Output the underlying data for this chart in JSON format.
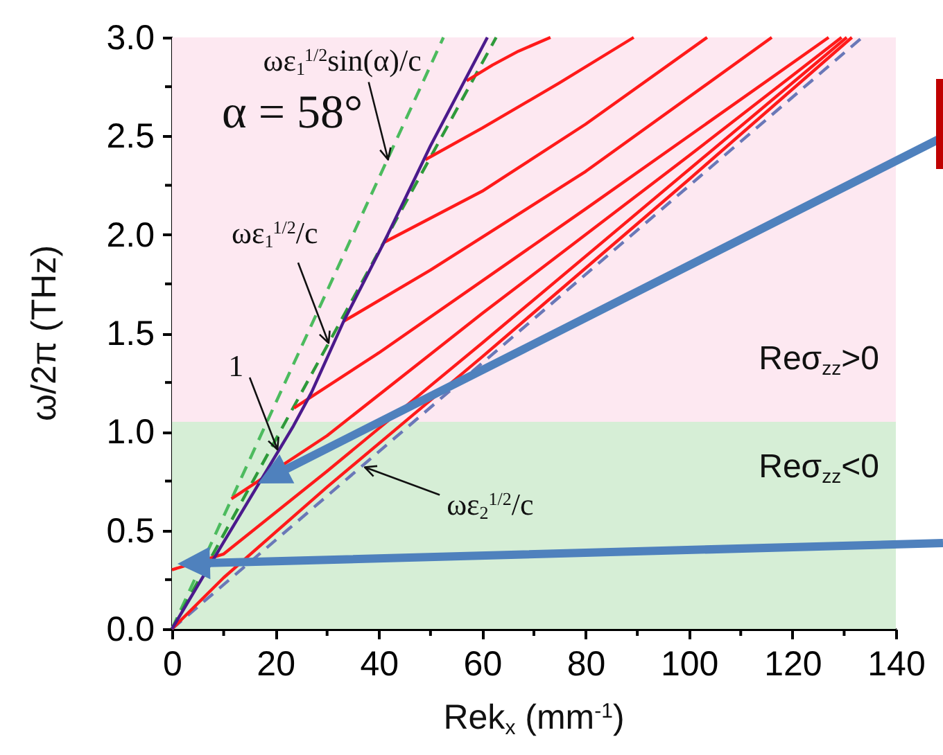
{
  "chart_data": {
    "type": "line",
    "xlabel": "Rek$_{x}$ (mm$^{-1}$)",
    "ylabel": "ω/2π (THz)",
    "xlim": [
      0,
      140
    ],
    "ylim": [
      0,
      3.0
    ],
    "xticks": [
      0,
      {
        "value": 10,
        "label": null
      },
      20,
      {
        "value": 30,
        "label": null
      },
      40,
      {
        "value": 50,
        "label": null
      },
      60,
      {
        "value": 70,
        "label": null
      },
      80,
      {
        "value": 90,
        "label": null
      },
      100,
      {
        "value": 110,
        "label": null
      },
      120,
      {
        "value": 130,
        "label": null
      },
      140
    ],
    "yticks": [
      {
        "value": 0,
        "label": "0.0"
      },
      {
        "value": 0.25,
        "label": null
      },
      {
        "value": 0.5,
        "label": "0.5"
      },
      {
        "value": 0.75,
        "label": null
      },
      {
        "value": 1,
        "label": "1.0"
      },
      {
        "value": 1.25,
        "label": null
      },
      {
        "value": 1.5,
        "label": "1.5"
      },
      {
        "value": 1.75,
        "label": null
      },
      {
        "value": 2,
        "label": "2.0"
      },
      {
        "value": 2.25,
        "label": null
      },
      {
        "value": 2.5,
        "label": "2.5"
      },
      {
        "value": 2.75,
        "label": null
      },
      {
        "value": 3,
        "label": "3.0"
      }
    ],
    "grid": false,
    "bands": [
      {
        "axis": "y",
        "from": 0,
        "to": 1.05,
        "color": "#d6eed6",
        "label": "Reσ$_{zz}$<0"
      },
      {
        "axis": "y",
        "from": 1.05,
        "to": 3.0,
        "color": "#fde8f1",
        "label": "Reσ$_{zz}$>0"
      }
    ],
    "series": [
      {
        "color": "#6a78b8",
        "line_style": "dashed",
        "x": [
          0,
          133.5
        ],
        "values": [
          0,
          3.0
        ]
      },
      {
        "color": "#4cbb5e",
        "line_style": "dashed",
        "x": [
          0,
          52.5
        ],
        "values": [
          0,
          3.0
        ]
      },
      {
        "color": "#2e9a3a",
        "line_style": "dashed",
        "x": [
          0,
          62.7
        ],
        "values": [
          0,
          3.0
        ]
      },
      {
        "color": "#ff1a1a",
        "line_style": "solid",
        "x": [
          57,
          62,
          67,
          73.2
        ],
        "values": [
          2.78,
          2.86,
          2.93,
          3.0
        ]
      },
      {
        "color": "#ff1a1a",
        "line_style": "solid",
        "x": [
          49,
          60,
          75,
          89.3
        ],
        "values": [
          2.38,
          2.54,
          2.77,
          3.0
        ]
      },
      {
        "color": "#ff1a1a",
        "line_style": "solid",
        "x": [
          41,
          60,
          80,
          103.5
        ],
        "values": [
          1.96,
          2.22,
          2.56,
          3.0
        ]
      },
      {
        "color": "#ff1a1a",
        "line_style": "solid",
        "x": [
          33.2,
          50,
          80,
          116
        ],
        "values": [
          1.56,
          1.82,
          2.32,
          3.0
        ]
      },
      {
        "color": "#ff1a1a",
        "line_style": "solid",
        "x": [
          23.6,
          40,
          80,
          127
        ],
        "values": [
          1.12,
          1.4,
          2.13,
          3.0
        ]
      },
      {
        "color": "#ff1a1a",
        "line_style": "solid",
        "x": [
          11.5,
          30,
          60,
          100,
          129.5
        ],
        "values": [
          0.66,
          0.98,
          1.6,
          2.4,
          3.0
        ]
      },
      {
        "color": "#ff1a1a",
        "line_style": "solid",
        "x": [
          0,
          10,
          30,
          60,
          100,
          130.5
        ],
        "values": [
          0.3,
          0.38,
          0.8,
          1.45,
          2.33,
          3.0
        ]
      },
      {
        "color": "#ff1a1a",
        "line_style": "solid",
        "x": [
          0,
          10,
          30,
          60,
          100,
          131.5
        ],
        "values": [
          0,
          0.26,
          0.72,
          1.38,
          2.28,
          3.0
        ]
      },
      {
        "color": "#4b1a8c",
        "line_style": "solid",
        "x": [
          0,
          10,
          23.5,
          27,
          33.2,
          41,
          50,
          61
        ],
        "values": [
          0,
          0.44,
          1.03,
          1.2,
          1.56,
          1.96,
          2.45,
          3.0
        ]
      }
    ],
    "annotations": [
      {
        "text": "ωε$_{1}$$^{1/2}$sin(α)/c",
        "x": 41.8,
        "y": 2.38
      },
      "α = 58°",
      {
        "text": "ωε$_{1}$$^{1/2}$/c",
        "x": 30.3,
        "y": 1.45
      },
      {
        "text": "1",
        "x": 20.4,
        "y": 0.91
      },
      {
        "text": "ωε$_{2}$$^{1/2}$/c",
        "x": 37.3,
        "y": 0.82
      }
    ]
  }
}
